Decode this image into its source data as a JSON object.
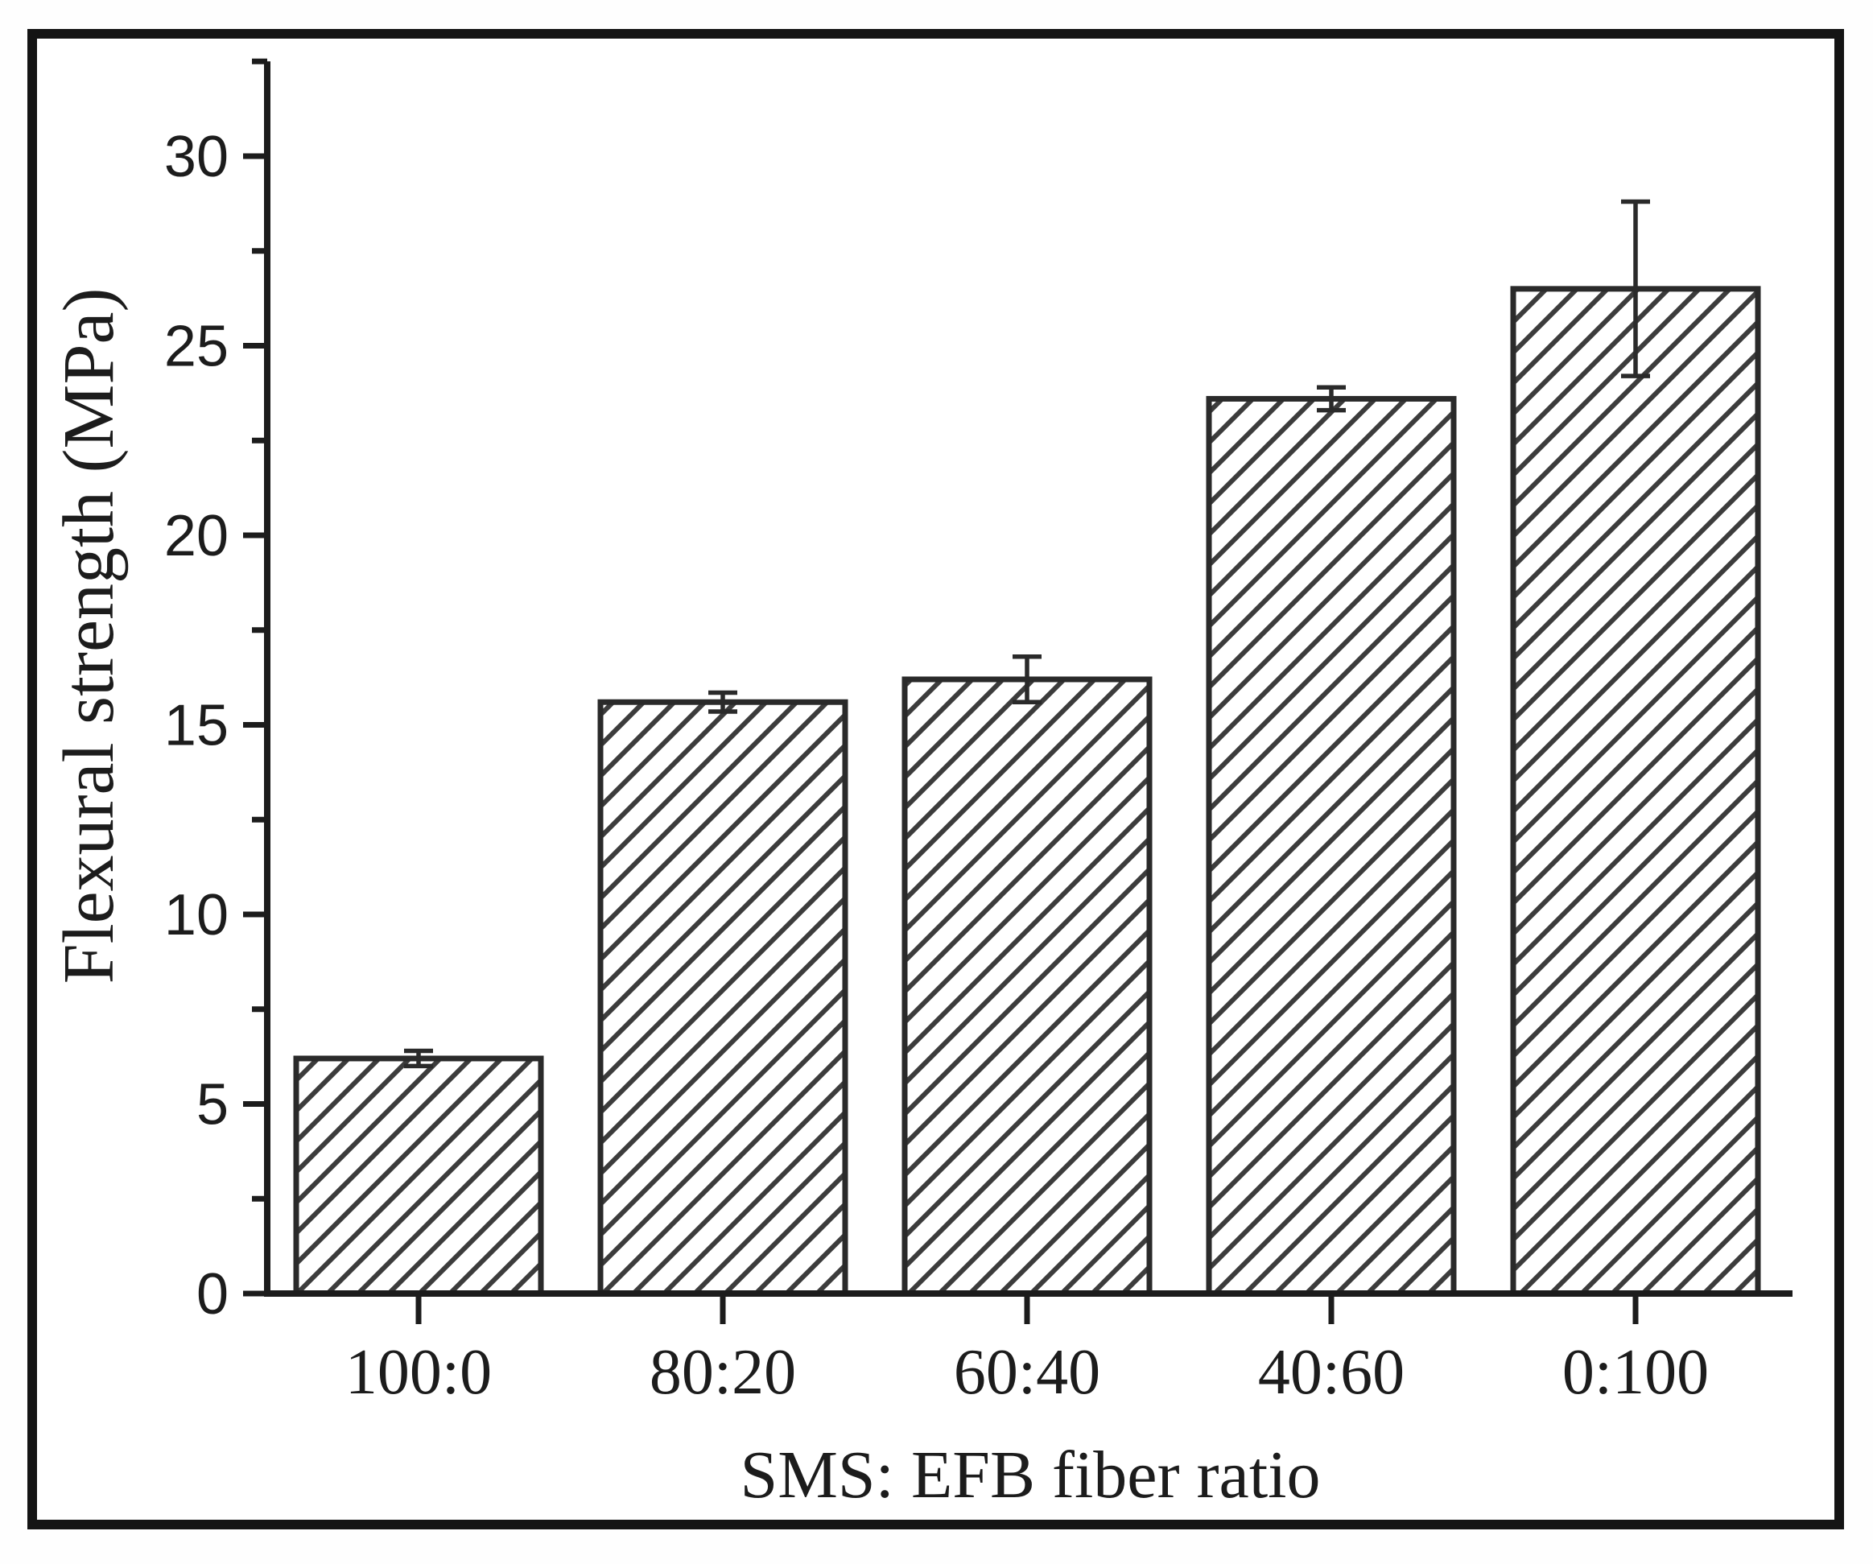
{
  "chart_data": {
    "type": "bar",
    "title": "",
    "categories": [
      "100:0",
      "80:20",
      "60:40",
      "40:60",
      "0:100"
    ],
    "values": [
      6.2,
      15.6,
      16.2,
      23.6,
      26.5
    ],
    "error_bars_plus_minus": [
      0.2,
      0.25,
      0.6,
      0.3,
      2.3
    ],
    "xlabel": "SMS: EFB fiber ratio",
    "ylabel": "Flexural strength (MPa)",
    "ylim": [
      0,
      32.5
    ],
    "y_major_ticks": [
      0,
      5,
      10,
      15,
      20,
      25,
      30
    ],
    "y_minor_tick_step": 2.5,
    "grid": false,
    "legend": false,
    "bar_hatch": "diagonal-forward-slash",
    "colors": {
      "axis": "#1c1c1c",
      "text": "#1c1c1c",
      "bar_edge": "#2a2a2a",
      "hatch_line": "#3c3c3c",
      "error_bar": "#2a2a2a",
      "figure_border": "#141414",
      "background": "#ffffff"
    }
  }
}
